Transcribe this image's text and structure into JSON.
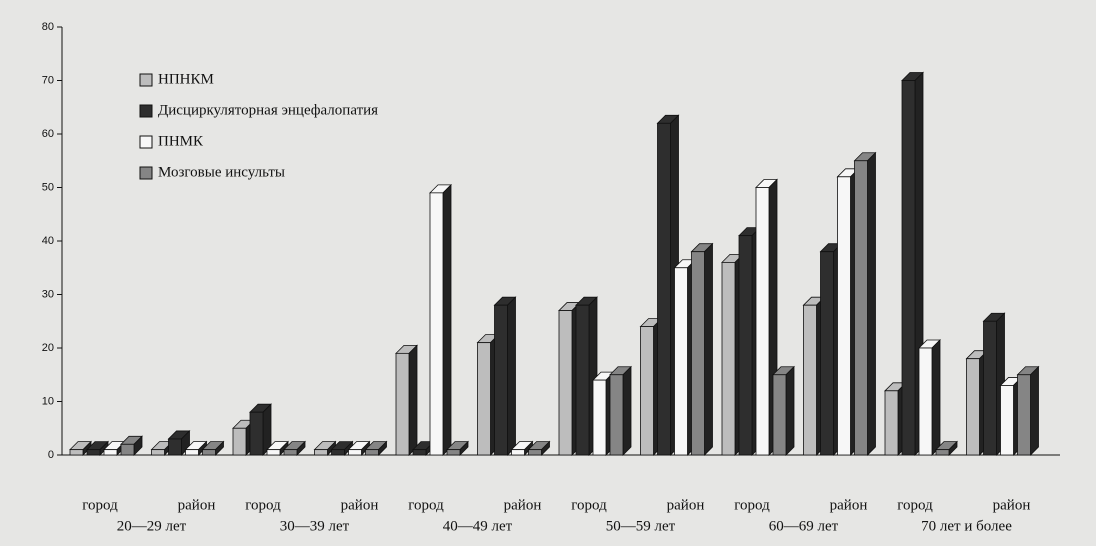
{
  "chart_data": {
    "type": "bar3d",
    "categories": [
      "город",
      "район",
      "город",
      "район",
      "город",
      "район",
      "город",
      "район",
      "город",
      "район",
      "город",
      "район"
    ],
    "groups": [
      "20—29 лет",
      "30—39 лет",
      "40—49 лет",
      "50—59 лет",
      "60—69 лет",
      "70 лет и более"
    ],
    "series": [
      {
        "name": "НПНКМ",
        "color": "#bdbdbd",
        "values": [
          1,
          1,
          5,
          1,
          19,
          21,
          27,
          24,
          36,
          28,
          12,
          18
        ]
      },
      {
        "name": "Дисциркуляторная энцефалопатия",
        "color": "#2e2e2e",
        "values": [
          1,
          3,
          8,
          1,
          1,
          28,
          28,
          62,
          41,
          38,
          70,
          25
        ]
      },
      {
        "name": "ПНМК",
        "color": "#f7f7f7",
        "values": [
          1,
          1,
          1,
          1,
          49,
          1,
          14,
          35,
          50,
          52,
          20,
          13
        ]
      },
      {
        "name": "Мозговые инсульты",
        "color": "#858585",
        "values": [
          2,
          1,
          1,
          1,
          1,
          1,
          15,
          38,
          15,
          55,
          1,
          15
        ]
      }
    ],
    "ylim": [
      0,
      80
    ],
    "yticks": [
      0,
      10,
      20,
      30,
      40,
      50,
      60,
      70,
      80
    ]
  }
}
